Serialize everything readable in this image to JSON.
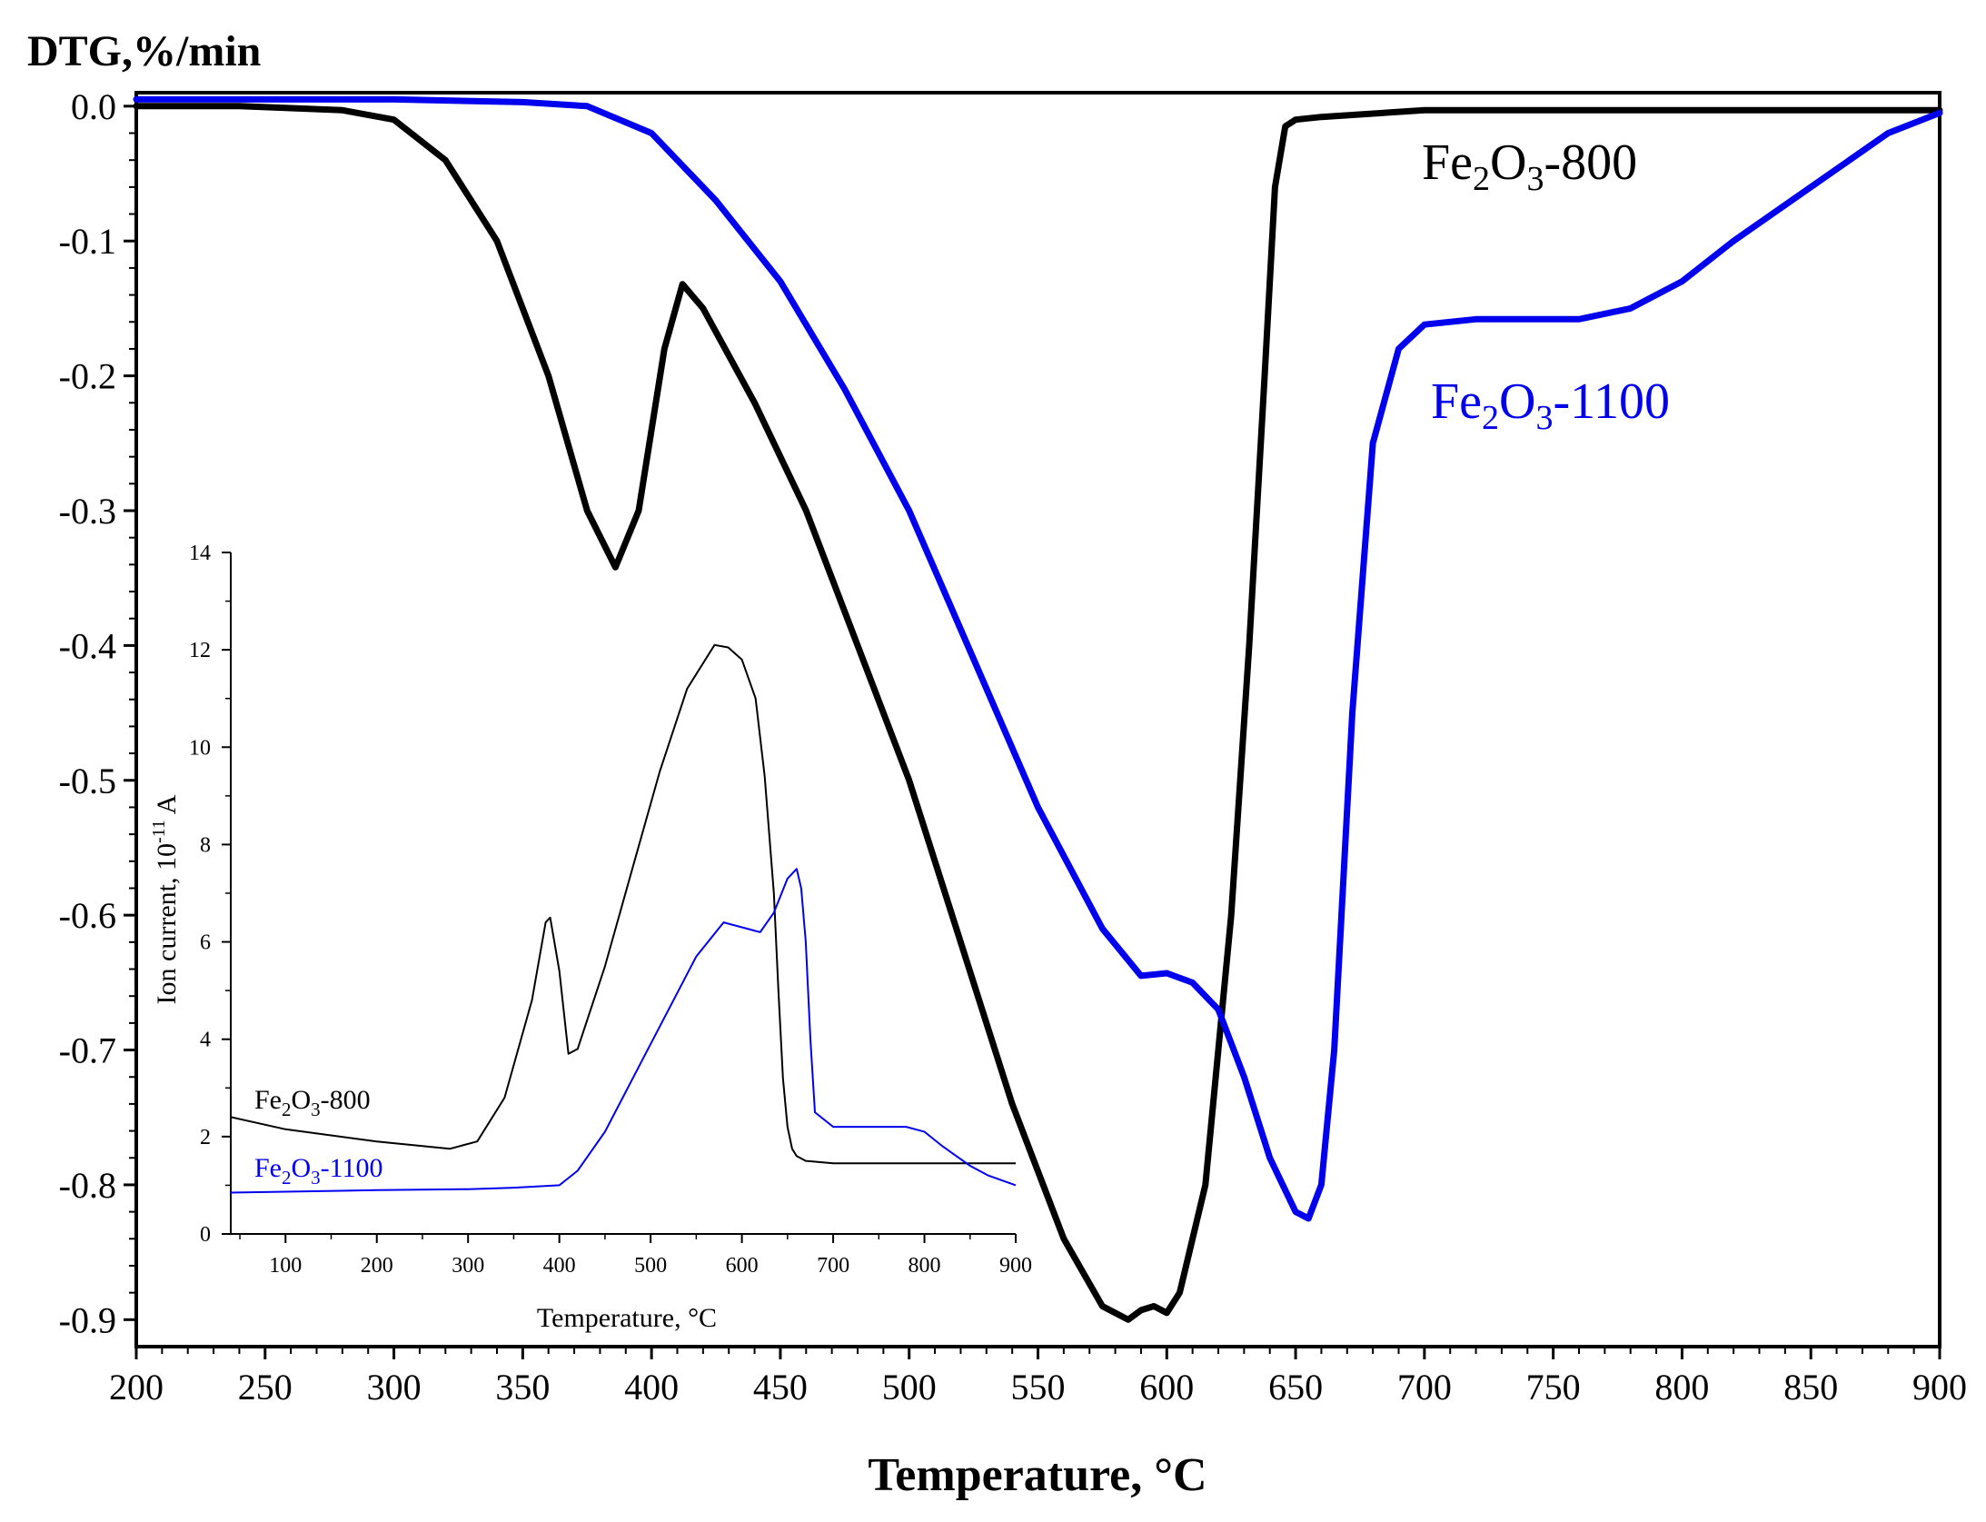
{
  "chart_data": [
    {
      "type": "line",
      "name": "main-dtg",
      "title": "",
      "xlabel": "Temperature, °C",
      "ylabel": "DTG,%/min",
      "xlim": [
        200,
        900
      ],
      "ylim": [
        -0.92,
        0.01
      ],
      "xticks": [
        200,
        250,
        300,
        350,
        400,
        450,
        500,
        550,
        600,
        650,
        700,
        750,
        800,
        850,
        900
      ],
      "yticks": [
        0.0,
        -0.1,
        -0.2,
        -0.3,
        -0.4,
        -0.5,
        -0.6,
        -0.7,
        -0.8,
        -0.9
      ],
      "ytick_labels": [
        "0.0",
        "-0.1",
        "-0.2",
        "-0.3",
        "-0.4",
        "-0.5",
        "-0.6",
        "-0.7",
        "-0.8",
        "-0.9"
      ],
      "series": [
        {
          "name": "Fe2O3-800",
          "label_base": "Fe",
          "label_sub1": "2",
          "label_mid": "O",
          "label_sub2": "3",
          "label_tail": "-800",
          "color": "#000000",
          "x": [
            200,
            240,
            280,
            300,
            320,
            340,
            360,
            375,
            386,
            395,
            405,
            412,
            420,
            440,
            460,
            480,
            500,
            520,
            540,
            560,
            575,
            585,
            590,
            595,
            600,
            605,
            615,
            625,
            632,
            638,
            642,
            646,
            650,
            660,
            700,
            740,
            800,
            860,
            900
          ],
          "y": [
            0.0,
            0.0,
            -0.003,
            -0.01,
            -0.04,
            -0.1,
            -0.2,
            -0.3,
            -0.342,
            -0.3,
            -0.18,
            -0.132,
            -0.15,
            -0.22,
            -0.3,
            -0.4,
            -0.5,
            -0.62,
            -0.74,
            -0.84,
            -0.89,
            -0.9,
            -0.893,
            -0.89,
            -0.895,
            -0.88,
            -0.8,
            -0.6,
            -0.4,
            -0.2,
            -0.06,
            -0.015,
            -0.01,
            -0.008,
            -0.003,
            -0.003,
            -0.003,
            -0.003,
            -0.003
          ]
        },
        {
          "name": "Fe2O3-1100",
          "label_base": "Fe",
          "label_sub1": "2",
          "label_mid": "O",
          "label_sub2": "3",
          "label_tail": "-1100",
          "color": "#0000ee",
          "x": [
            200,
            300,
            350,
            375,
            400,
            425,
            450,
            475,
            500,
            525,
            550,
            575,
            590,
            600,
            610,
            620,
            630,
            640,
            650,
            655,
            660,
            665,
            672,
            680,
            690,
            700,
            720,
            760,
            780,
            800,
            820,
            850,
            880,
            900
          ],
          "y": [
            0.005,
            0.005,
            0.003,
            0.0,
            -0.02,
            -0.07,
            -0.13,
            -0.21,
            -0.3,
            -0.41,
            -0.52,
            -0.61,
            -0.645,
            -0.643,
            -0.65,
            -0.67,
            -0.72,
            -0.78,
            -0.82,
            -0.825,
            -0.8,
            -0.7,
            -0.45,
            -0.25,
            -0.18,
            -0.162,
            -0.158,
            -0.158,
            -0.15,
            -0.13,
            -0.1,
            -0.06,
            -0.02,
            -0.005
          ]
        }
      ]
    },
    {
      "type": "line",
      "name": "inset-ion-current",
      "title": "",
      "xlabel": "Temperature, °C",
      "ylabel_prefix": "Ion current, 10",
      "ylabel_exp": "-11",
      "ylabel_suffix": " A",
      "xlim": [
        40,
        900
      ],
      "ylim": [
        0,
        14
      ],
      "xticks": [
        100,
        200,
        300,
        400,
        500,
        600,
        700,
        800,
        900
      ],
      "yticks": [
        0,
        2,
        4,
        6,
        8,
        10,
        12,
        14
      ],
      "series": [
        {
          "name": "Fe2O3-800",
          "label_base": "Fe",
          "label_sub1": "2",
          "label_mid": "O",
          "label_sub2": "3",
          "label_tail": "-800",
          "color": "#000000",
          "x": [
            40,
            100,
            200,
            280,
            310,
            340,
            370,
            385,
            390,
            400,
            410,
            420,
            450,
            480,
            510,
            540,
            570,
            585,
            600,
            615,
            625,
            635,
            640,
            645,
            650,
            655,
            660,
            670,
            700,
            800,
            900
          ],
          "y": [
            2.4,
            2.15,
            1.9,
            1.75,
            1.9,
            2.8,
            4.8,
            6.4,
            6.5,
            5.4,
            3.7,
            3.8,
            5.5,
            7.5,
            9.5,
            11.2,
            12.1,
            12.05,
            11.8,
            11.0,
            9.4,
            7.0,
            5.0,
            3.2,
            2.2,
            1.75,
            1.6,
            1.5,
            1.45,
            1.45,
            1.45
          ]
        },
        {
          "name": "Fe2O3-1100",
          "label_base": "Fe",
          "label_sub1": "2",
          "label_mid": "O",
          "label_sub2": "3",
          "label_tail": "-1100",
          "color": "#0000ee",
          "x": [
            40,
            200,
            300,
            350,
            400,
            420,
            450,
            500,
            550,
            580,
            600,
            620,
            635,
            650,
            660,
            665,
            670,
            675,
            680,
            700,
            750,
            780,
            800,
            820,
            850,
            870,
            900
          ],
          "y": [
            0.85,
            0.9,
            0.92,
            0.95,
            1.0,
            1.3,
            2.1,
            3.9,
            5.7,
            6.4,
            6.3,
            6.2,
            6.6,
            7.3,
            7.5,
            7.1,
            6.0,
            4.0,
            2.5,
            2.2,
            2.2,
            2.2,
            2.1,
            1.8,
            1.4,
            1.2,
            1.0
          ]
        }
      ]
    }
  ]
}
